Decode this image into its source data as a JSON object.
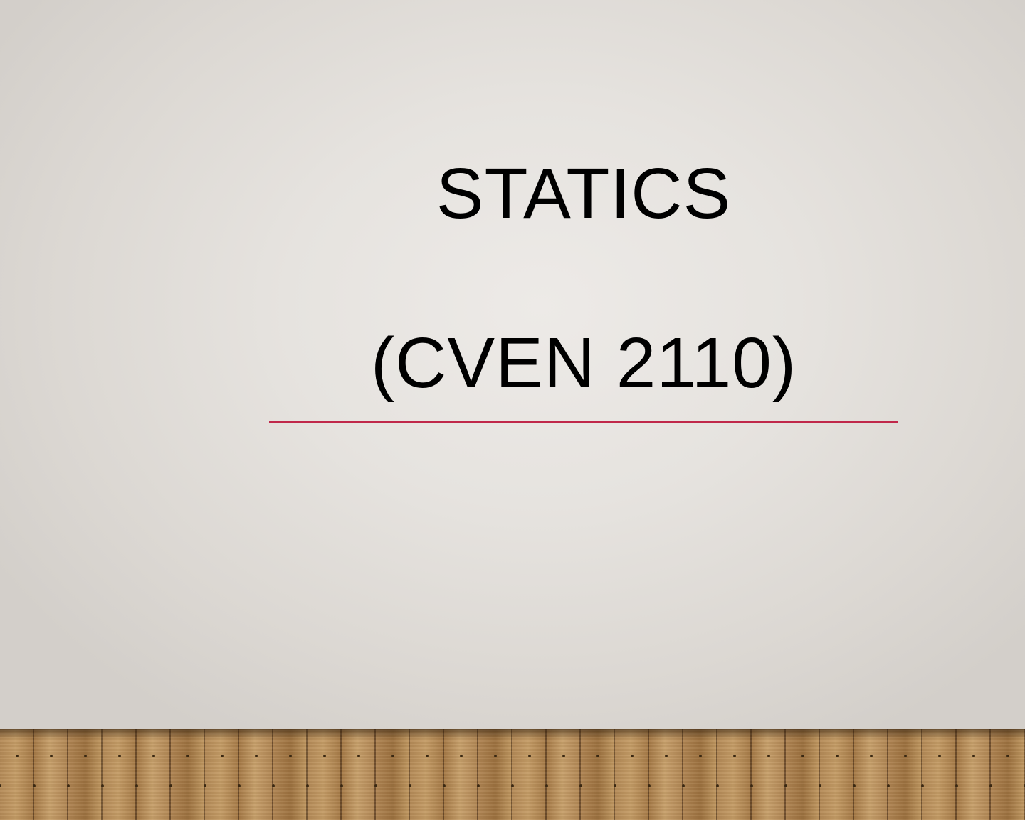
{
  "slide": {
    "title_line1": "STATICS",
    "title_line2": "(CVEN 2110)"
  },
  "colors": {
    "accent_rule": "#c0284a",
    "title_text": "#000000",
    "wall": "#e6e3df",
    "floor_wood": "#b48a57"
  }
}
